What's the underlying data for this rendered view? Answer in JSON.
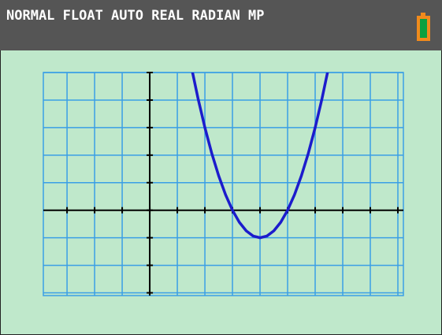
{
  "status_bar": {
    "modes": "NORMAL FLOAT AUTO REAL RADIAN MP"
  },
  "chart_data": {
    "type": "line",
    "x": [
      1.5,
      1.75,
      2,
      2.25,
      2.5,
      2.75,
      3,
      3.25,
      3.5,
      3.75,
      4,
      4.25,
      4.5,
      4.75,
      5,
      5.25,
      5.5,
      5.75,
      6,
      6.25,
      6.5
    ],
    "series": [
      {
        "color": "#1c1ccc",
        "values": [
          5.25,
          4.0625,
          3,
          2.0625,
          1.25,
          0.5625,
          0,
          -0.4375,
          -0.75,
          -0.9375,
          -1,
          -0.9375,
          -0.75,
          -0.4375,
          0,
          0.5625,
          1.25,
          2.0625,
          3,
          4.0625,
          5.25
        ]
      }
    ],
    "xlim": [
      -3.86,
      9.2
    ],
    "ylim": [
      -3.1,
      5
    ],
    "xticks": [
      -3,
      -2,
      -1,
      0,
      1,
      2,
      3,
      4,
      5,
      6,
      7,
      8,
      9
    ],
    "yticks": [
      -3,
      -2,
      -1,
      0,
      1,
      2,
      3,
      4,
      5
    ],
    "grid": true,
    "grid_color": "#3a9fe6"
  }
}
